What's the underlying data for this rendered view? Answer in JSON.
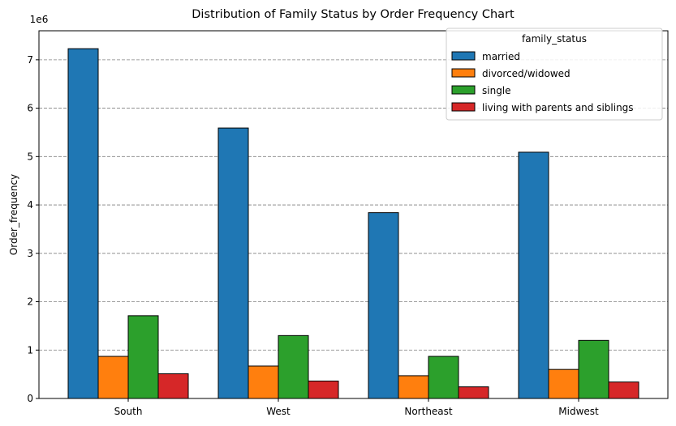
{
  "chart_data": {
    "type": "bar",
    "title": "Distribution of Family Status by Order Frequency Chart",
    "xlabel": "",
    "ylabel": "Order_frequency",
    "y_scale_label": "1e6",
    "categories": [
      "South",
      "West",
      "Northeast",
      "Midwest"
    ],
    "series": [
      {
        "name": "married",
        "color": "#1f77b4",
        "values": [
          7230000,
          5590000,
          3840000,
          5090000
        ]
      },
      {
        "name": "divorced/widowed",
        "color": "#ff7f0e",
        "values": [
          870000,
          670000,
          470000,
          600000
        ]
      },
      {
        "name": "single",
        "color": "#2ca02c",
        "values": [
          1710000,
          1300000,
          870000,
          1200000
        ]
      },
      {
        "name": "living with parents and siblings",
        "color": "#d62728",
        "values": [
          510000,
          360000,
          240000,
          340000
        ]
      }
    ],
    "yticks": [
      0,
      1,
      2,
      3,
      4,
      5,
      6,
      7
    ],
    "ylim": [
      0,
      7600000
    ],
    "grid": "y-dashed",
    "legend": {
      "title": "family_status",
      "position": "top-right"
    }
  }
}
